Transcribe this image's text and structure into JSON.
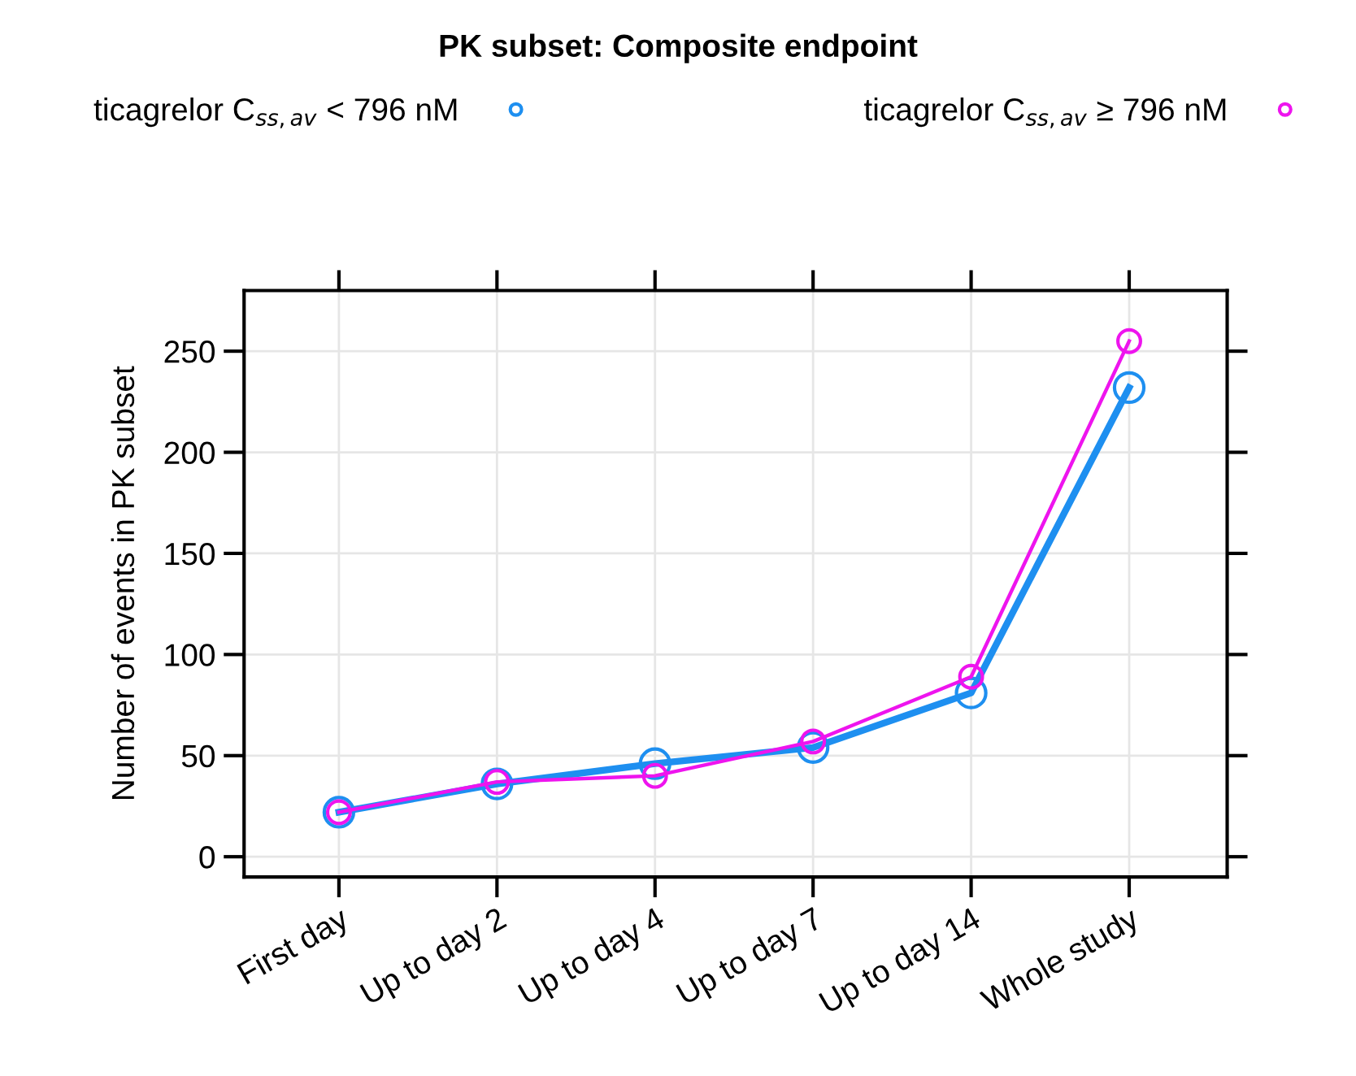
{
  "chart_data": {
    "type": "line",
    "title": "PK subset: Composite endpoint",
    "ylabel": "Number of events in PK subset",
    "categories": [
      "First day",
      "Up to day 2",
      "Up to day 4",
      "Up to day 7",
      "Up to day 14",
      "Whole study"
    ],
    "series": [
      {
        "name": "ticagrelor C$_{ss,av}$ < 796 nM",
        "color": "#1e8ff0",
        "values": [
          22,
          36,
          46,
          54,
          81,
          232
        ]
      },
      {
        "name": "ticagrelor C$_{ss,av}$ ≥ 796 nM",
        "color": "#ee14ee",
        "values": [
          22,
          37,
          40,
          57,
          89,
          255
        ]
      }
    ],
    "ylim": [
      -10,
      280
    ],
    "yticks": [
      0,
      50,
      100,
      150,
      200,
      250
    ],
    "grid": true,
    "legend": "top",
    "marker": "circle",
    "line_style": "solid"
  }
}
